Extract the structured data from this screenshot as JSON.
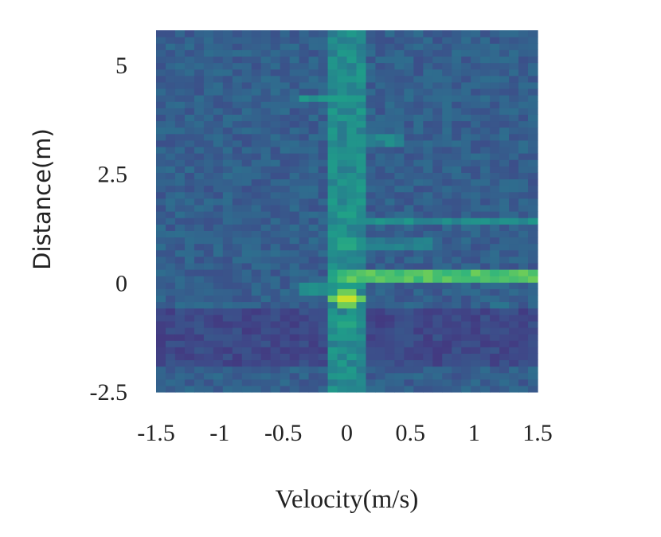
{
  "chart_data": {
    "type": "heatmap",
    "title": "",
    "xlabel": "Velocity(m/s)",
    "ylabel": "Distance(m)",
    "xlim": [
      -1.5,
      1.5
    ],
    "ylim": [
      -2.5,
      5.8
    ],
    "x_ticks": [
      "-1.5",
      "-1",
      "-0.5",
      "0",
      "0.5",
      "1",
      "1.5"
    ],
    "x_tick_values": [
      -1.5,
      -1,
      -0.5,
      0,
      0.5,
      1,
      1.5
    ],
    "y_ticks": [
      "-2.5",
      "0",
      "2.5",
      "5"
    ],
    "y_tick_values": [
      -2.5,
      0,
      2.5,
      5
    ],
    "colormap": "viridis",
    "value_range": [
      0,
      1
    ],
    "background_level": 0.3,
    "features": [
      {
        "kind": "vertical-band",
        "velocity": 0,
        "width": 0.14,
        "distance_range": [
          -2.5,
          5.8
        ],
        "intensity": 0.48
      },
      {
        "kind": "spot",
        "velocity": 0,
        "distance": -0.35,
        "intensity": 1.0
      },
      {
        "kind": "spot",
        "velocity": 0,
        "distance": 0.15,
        "intensity": 0.78
      },
      {
        "kind": "spot",
        "velocity": 0,
        "distance": 0.9,
        "intensity": 0.68
      },
      {
        "kind": "spot",
        "velocity": 0,
        "distance": 1.6,
        "intensity": 0.62
      },
      {
        "kind": "spot",
        "velocity": 0,
        "distance": -0.9,
        "intensity": 0.66
      },
      {
        "kind": "spot",
        "velocity": 0,
        "distance": 4.2,
        "intensity": 0.6
      },
      {
        "kind": "spot",
        "velocity": 0,
        "distance": 2.9,
        "intensity": 0.55
      },
      {
        "kind": "horizontal-streak",
        "distance": 4.25,
        "velocity_range": [
          -0.35,
          0.15
        ],
        "intensity": 0.5
      },
      {
        "kind": "horizontal-streak",
        "distance": 0.2,
        "velocity_range": [
          0,
          1.5
        ],
        "intensity": 0.72
      },
      {
        "kind": "horizontal-streak",
        "distance": -0.15,
        "velocity_range": [
          -0.4,
          0
        ],
        "intensity": 0.5
      },
      {
        "kind": "horizontal-streak",
        "distance": 1.4,
        "velocity_range": [
          0.1,
          1.5
        ],
        "intensity": 0.48
      },
      {
        "kind": "horizontal-streak",
        "distance": 3.25,
        "velocity_range": [
          0,
          0.45
        ],
        "intensity": 0.45
      },
      {
        "kind": "horizontal-streak",
        "distance": 0.9,
        "velocity_range": [
          0.1,
          0.7
        ],
        "intensity": 0.42
      },
      {
        "kind": "spot",
        "velocity": 1.2,
        "distance": -0.7,
        "intensity": 0.55
      },
      {
        "kind": "dark-region",
        "distance_range": [
          -1.9,
          -0.6
        ],
        "velocity_range": [
          -1.5,
          1.5
        ],
        "intensity": 0.12
      }
    ]
  }
}
